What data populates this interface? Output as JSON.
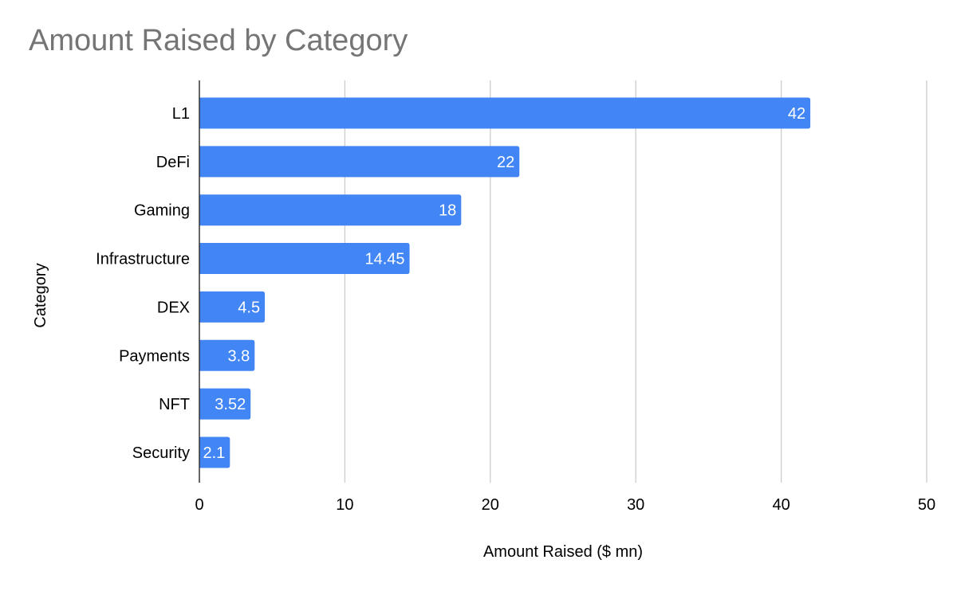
{
  "chart_data": {
    "type": "bar",
    "orientation": "horizontal",
    "title": "Amount Raised by Category",
    "xlabel": "Amount Raised ($ mn)",
    "ylabel": "Category",
    "categories": [
      "L1",
      "DeFi",
      "Gaming",
      "Infrastructure",
      "DEX",
      "Payments",
      "NFT",
      "Security"
    ],
    "values": [
      42,
      22,
      18,
      14.45,
      4.5,
      3.8,
      3.52,
      2.1
    ],
    "data_labels": [
      "42",
      "22",
      "18",
      "14.45",
      "4.5",
      "3.8",
      "3.52",
      "2.1"
    ],
    "xlim": [
      0,
      50
    ],
    "xticks": [
      0,
      10,
      20,
      30,
      40,
      50
    ],
    "grid": "vertical",
    "legend": "none",
    "colors": {
      "bar": "#4285f4",
      "grid": "#cccccc",
      "axis": "#333333",
      "title": "#757575",
      "text": "#000000",
      "data_label": "#ffffff"
    }
  }
}
